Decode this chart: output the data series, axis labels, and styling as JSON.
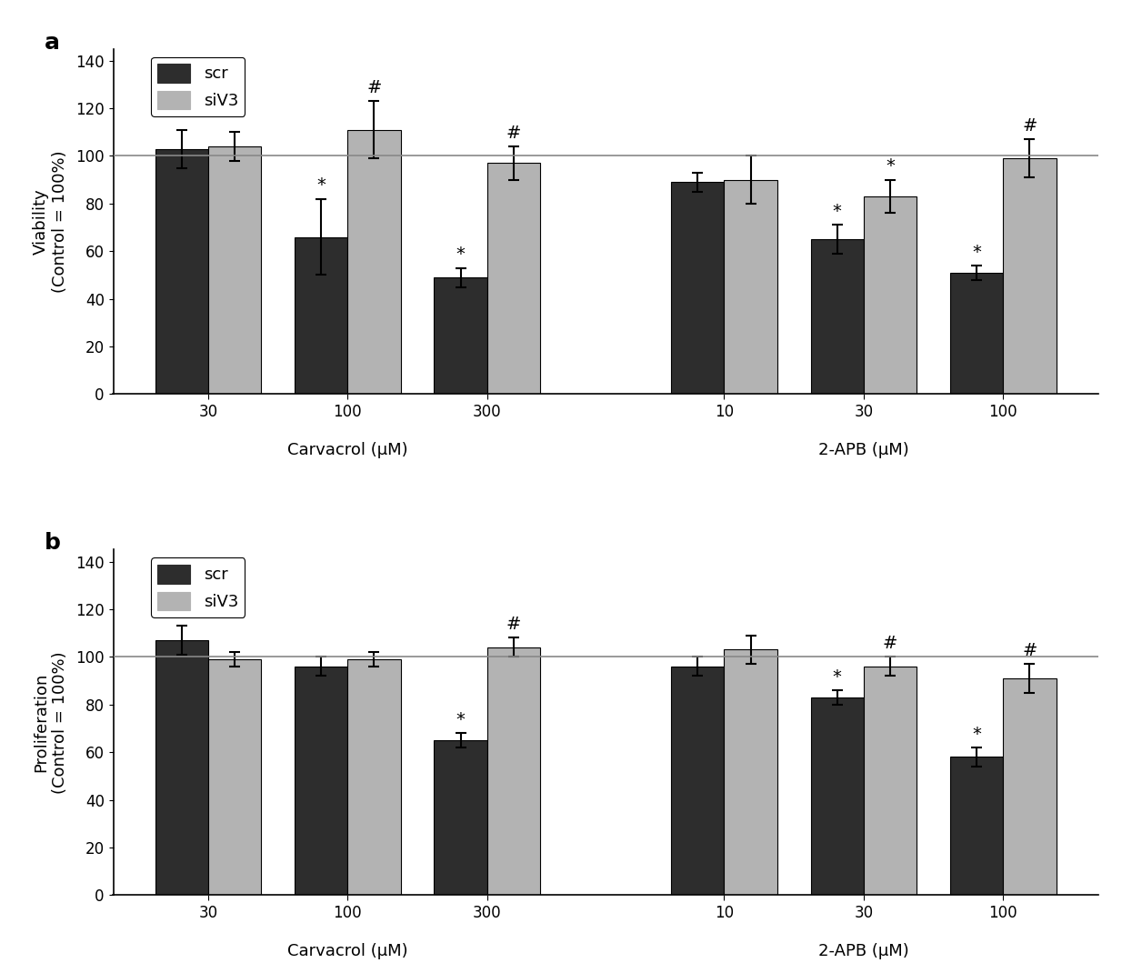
{
  "panel_a": {
    "ylabel": "Viability\n(Control = 100%)",
    "groups": [
      {
        "label": "30",
        "scr_val": 103,
        "scr_err": 8,
        "siv3_val": 104,
        "siv3_err": 6,
        "scr_star_label": "",
        "siv3_hash_label": ""
      },
      {
        "label": "100",
        "scr_val": 66,
        "scr_err": 16,
        "siv3_val": 111,
        "siv3_err": 12,
        "scr_star_label": "*",
        "siv3_hash_label": "#"
      },
      {
        "label": "300",
        "scr_val": 49,
        "scr_err": 4,
        "siv3_val": 97,
        "siv3_err": 7,
        "scr_star_label": "*",
        "siv3_hash_label": "#"
      },
      {
        "label": "10",
        "scr_val": 89,
        "scr_err": 4,
        "siv3_val": 90,
        "siv3_err": 10,
        "scr_star_label": "",
        "siv3_hash_label": ""
      },
      {
        "label": "30",
        "scr_val": 65,
        "scr_err": 6,
        "siv3_val": 83,
        "siv3_err": 7,
        "scr_star_label": "*",
        "siv3_hash_label": "*"
      },
      {
        "label": "100",
        "scr_val": 51,
        "scr_err": 3,
        "siv3_val": 99,
        "siv3_err": 8,
        "scr_star_label": "*",
        "siv3_hash_label": "#"
      }
    ]
  },
  "panel_b": {
    "ylabel": "Proliferation\n(Control = 100%)",
    "groups": [
      {
        "label": "30",
        "scr_val": 107,
        "scr_err": 6,
        "siv3_val": 99,
        "siv3_err": 3,
        "scr_star_label": "",
        "siv3_hash_label": ""
      },
      {
        "label": "100",
        "scr_val": 96,
        "scr_err": 4,
        "siv3_val": 99,
        "siv3_err": 3,
        "scr_star_label": "",
        "siv3_hash_label": ""
      },
      {
        "label": "300",
        "scr_val": 65,
        "scr_err": 3,
        "siv3_val": 104,
        "siv3_err": 4,
        "scr_star_label": "*",
        "siv3_hash_label": "#"
      },
      {
        "label": "10",
        "scr_val": 96,
        "scr_err": 4,
        "siv3_val": 103,
        "siv3_err": 6,
        "scr_star_label": "",
        "siv3_hash_label": ""
      },
      {
        "label": "30",
        "scr_val": 83,
        "scr_err": 3,
        "siv3_val": 96,
        "siv3_err": 4,
        "scr_star_label": "*",
        "siv3_hash_label": "#"
      },
      {
        "label": "100",
        "scr_val": 58,
        "scr_err": 4,
        "siv3_val": 91,
        "siv3_err": 6,
        "scr_star_label": "*",
        "siv3_hash_label": "#"
      }
    ]
  },
  "scr_color": "#2d2d2d",
  "siv3_color": "#b3b3b3",
  "bar_width": 0.38,
  "ylim": [
    0,
    145
  ],
  "yticks": [
    0,
    20,
    40,
    60,
    80,
    100,
    120,
    140
  ],
  "hline_y": 100,
  "hline_color": "#888888",
  "panel_labels": [
    "a",
    "b"
  ],
  "xlabel_carvacrol": "Carvacrol (μM)",
  "xlabel_2apb": "2-APB (μM)",
  "carv_centers": [
    0,
    1,
    2
  ],
  "apb_centers": [
    3.7,
    4.7,
    5.7
  ],
  "font_size": 13,
  "tick_font_size": 12,
  "annotation_font_size": 14,
  "panel_label_font_size": 18,
  "legend_font_size": 13
}
